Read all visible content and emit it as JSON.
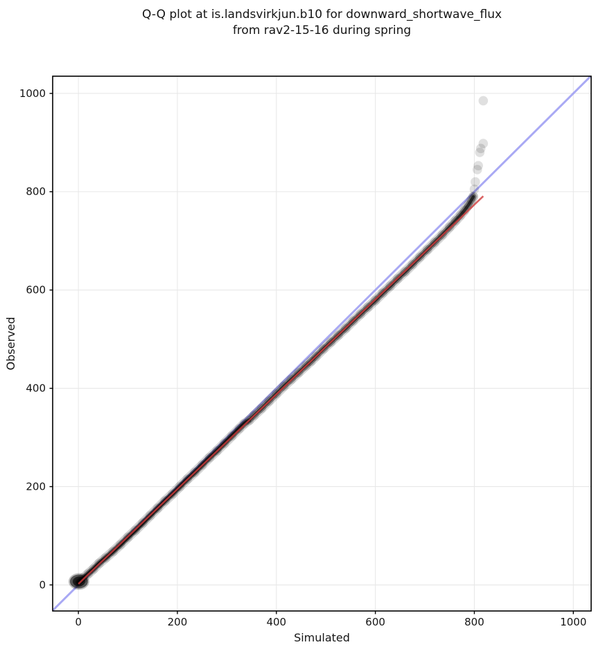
{
  "title": {
    "line1": "Q-Q plot at is.landsvirkjun.b10 for downward_shortwave_flux",
    "line2": "from rav2-15-16 during spring"
  },
  "chart_data": {
    "type": "scatter",
    "title": "Q-Q plot at is.landsvirkjun.b10 for downward_shortwave_flux from rav2-15-16 during spring",
    "xlabel": "Simulated",
    "ylabel": "Observed",
    "xlim": [
      -52,
      1036
    ],
    "ylim": [
      -53,
      1035
    ],
    "x_ticks": [
      0,
      200,
      400,
      600,
      800,
      1000
    ],
    "y_ticks": [
      0,
      200,
      400,
      600,
      800,
      1000
    ],
    "grid": true,
    "grid_color": "#e8e8e8",
    "background_color": "#ffffff",
    "identity_line": {
      "name": "identity-line-y-equals-x",
      "color": "#9a9af2",
      "opacity": 0.85,
      "width": 3,
      "x": [
        -52,
        1035
      ],
      "y": [
        -52,
        1035
      ]
    },
    "fit_line": {
      "name": "linear-fit-line",
      "color": "#d13c3c",
      "opacity": 0.8,
      "width": 2.6,
      "x": [
        0,
        818
      ],
      "y": [
        2,
        791
      ]
    },
    "origin_cluster": {
      "center": [
        1,
        7
      ],
      "note": "dense overplotted cluster of low quantiles near (0,0)-(15,20)"
    },
    "series": [
      {
        "name": "quantile-band",
        "marker_color": "#000000",
        "marker_radius": 6.8,
        "marker_opacity": 0.1,
        "points": [
          [
            0,
            5
          ],
          [
            10,
            14
          ],
          [
            20,
            23
          ],
          [
            30,
            32
          ],
          [
            42,
            44
          ],
          [
            55,
            55
          ],
          [
            70,
            68
          ],
          [
            85,
            82
          ],
          [
            100,
            97
          ],
          [
            115,
            111
          ],
          [
            130,
            126
          ],
          [
            145,
            141
          ],
          [
            160,
            156
          ],
          [
            175,
            171
          ],
          [
            190,
            185
          ],
          [
            205,
            200
          ],
          [
            220,
            215
          ],
          [
            235,
            229
          ],
          [
            250,
            244
          ],
          [
            265,
            259
          ],
          [
            280,
            273
          ],
          [
            295,
            288
          ],
          [
            310,
            303
          ],
          [
            325,
            318
          ],
          [
            335,
            328
          ],
          [
            345,
            335
          ],
          [
            355,
            345
          ],
          [
            370,
            359
          ],
          [
            385,
            374
          ],
          [
            400,
            389
          ],
          [
            415,
            404
          ],
          [
            430,
            418
          ],
          [
            445,
            432
          ],
          [
            460,
            446
          ],
          [
            470,
            455
          ],
          [
            480,
            465
          ],
          [
            495,
            480
          ],
          [
            510,
            494
          ],
          [
            525,
            508
          ],
          [
            540,
            522
          ],
          [
            555,
            537
          ],
          [
            570,
            551
          ],
          [
            585,
            565
          ],
          [
            600,
            579
          ],
          [
            615,
            594
          ],
          [
            630,
            608
          ],
          [
            645,
            623
          ],
          [
            660,
            637
          ],
          [
            675,
            652
          ],
          [
            690,
            667
          ],
          [
            705,
            682
          ],
          [
            720,
            697
          ],
          [
            735,
            712
          ],
          [
            750,
            728
          ],
          [
            762,
            741
          ],
          [
            772,
            752
          ],
          [
            780,
            762
          ],
          [
            788,
            773
          ],
          [
            794,
            783
          ],
          [
            798,
            790
          ]
        ]
      },
      {
        "name": "upper-tail-outliers",
        "marker_color": "#000000",
        "marker_radius": 6.8,
        "marker_opacity": 0.12,
        "points": [
          [
            800,
            805
          ],
          [
            802,
            820
          ],
          [
            806,
            845
          ],
          [
            808,
            853
          ],
          [
            811,
            880
          ],
          [
            813,
            888
          ],
          [
            818,
            898
          ],
          [
            818,
            985
          ]
        ]
      }
    ]
  },
  "axes": {
    "xlabel": "Simulated",
    "ylabel": "Observed"
  },
  "style": {
    "spine_color": "#000000",
    "tick_color": "#000000",
    "text_color": "#151515"
  }
}
